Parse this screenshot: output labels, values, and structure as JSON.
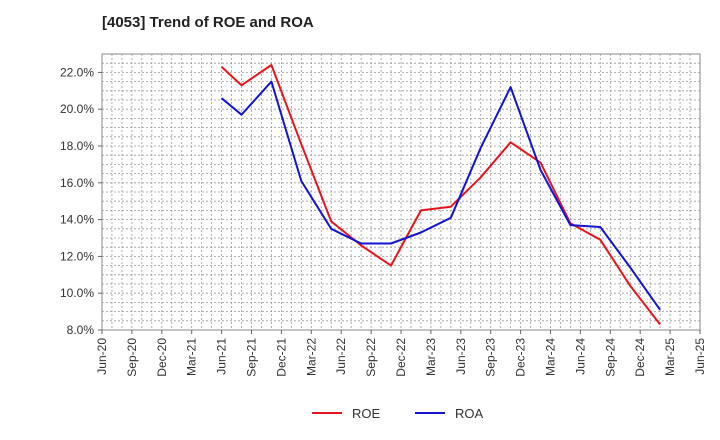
{
  "chart_data": {
    "type": "line",
    "title": "[4053]  Trend of ROE and ROA",
    "xlabel": "",
    "ylabel": "",
    "x": [
      "Jun-20",
      "Sep-20",
      "Dec-20",
      "Mar-21",
      "Jun-21",
      "Sep-21",
      "Dec-21",
      "Mar-22",
      "Jun-22",
      "Sep-22",
      "Dec-22",
      "Mar-23",
      "Jun-23",
      "Sep-23",
      "Dec-23",
      "Mar-24",
      "Jun-24",
      "Sep-24",
      "Dec-24",
      "Mar-25",
      "Jun-25"
    ],
    "ylim": [
      8.0,
      23.0
    ],
    "yticks": [
      8.0,
      10.0,
      12.0,
      14.0,
      16.0,
      18.0,
      20.0,
      22.0
    ],
    "ytick_labels": [
      "8.0%",
      "10.0%",
      "12.0%",
      "14.0%",
      "16.0%",
      "18.0%",
      "20.0%",
      "22.0%"
    ],
    "grid": true,
    "legend_position": "bottom-center",
    "series": [
      {
        "name": "ROE",
        "color": "#e8141b",
        "points": [
          {
            "x": "Jun-21",
            "y": 22.3
          },
          {
            "x": "Aug-21",
            "y": 21.3
          },
          {
            "x": "Nov-21",
            "y": 22.4
          },
          {
            "x": "Feb-22",
            "y": 18.1
          },
          {
            "x": "May-22",
            "y": 13.9
          },
          {
            "x": "Aug-22",
            "y": 12.6
          },
          {
            "x": "Nov-22",
            "y": 11.5
          },
          {
            "x": "Feb-23",
            "y": 14.5
          },
          {
            "x": "May-23",
            "y": 14.7
          },
          {
            "x": "Aug-23",
            "y": 16.3
          },
          {
            "x": "Nov-23",
            "y": 18.2
          },
          {
            "x": "Feb-24",
            "y": 17.1
          },
          {
            "x": "May-24",
            "y": 13.8
          },
          {
            "x": "Aug-24",
            "y": 12.9
          },
          {
            "x": "Nov-24",
            "y": 10.4
          },
          {
            "x": "Feb-25",
            "y": 8.3
          }
        ]
      },
      {
        "name": "ROA",
        "color": "#1414d4",
        "points": [
          {
            "x": "Jun-21",
            "y": 20.6
          },
          {
            "x": "Aug-21",
            "y": 19.7
          },
          {
            "x": "Nov-21",
            "y": 21.5
          },
          {
            "x": "Feb-22",
            "y": 16.1
          },
          {
            "x": "May-22",
            "y": 13.5
          },
          {
            "x": "Aug-22",
            "y": 12.7
          },
          {
            "x": "Nov-22",
            "y": 12.7
          },
          {
            "x": "Feb-23",
            "y": 13.3
          },
          {
            "x": "May-23",
            "y": 14.1
          },
          {
            "x": "Aug-23",
            "y": 17.9
          },
          {
            "x": "Nov-23",
            "y": 21.2
          },
          {
            "x": "Feb-24",
            "y": 16.7
          },
          {
            "x": "May-24",
            "y": 13.7
          },
          {
            "x": "Aug-24",
            "y": 13.6
          },
          {
            "x": "Nov-24",
            "y": 11.4
          },
          {
            "x": "Feb-25",
            "y": 9.1
          }
        ]
      }
    ]
  }
}
